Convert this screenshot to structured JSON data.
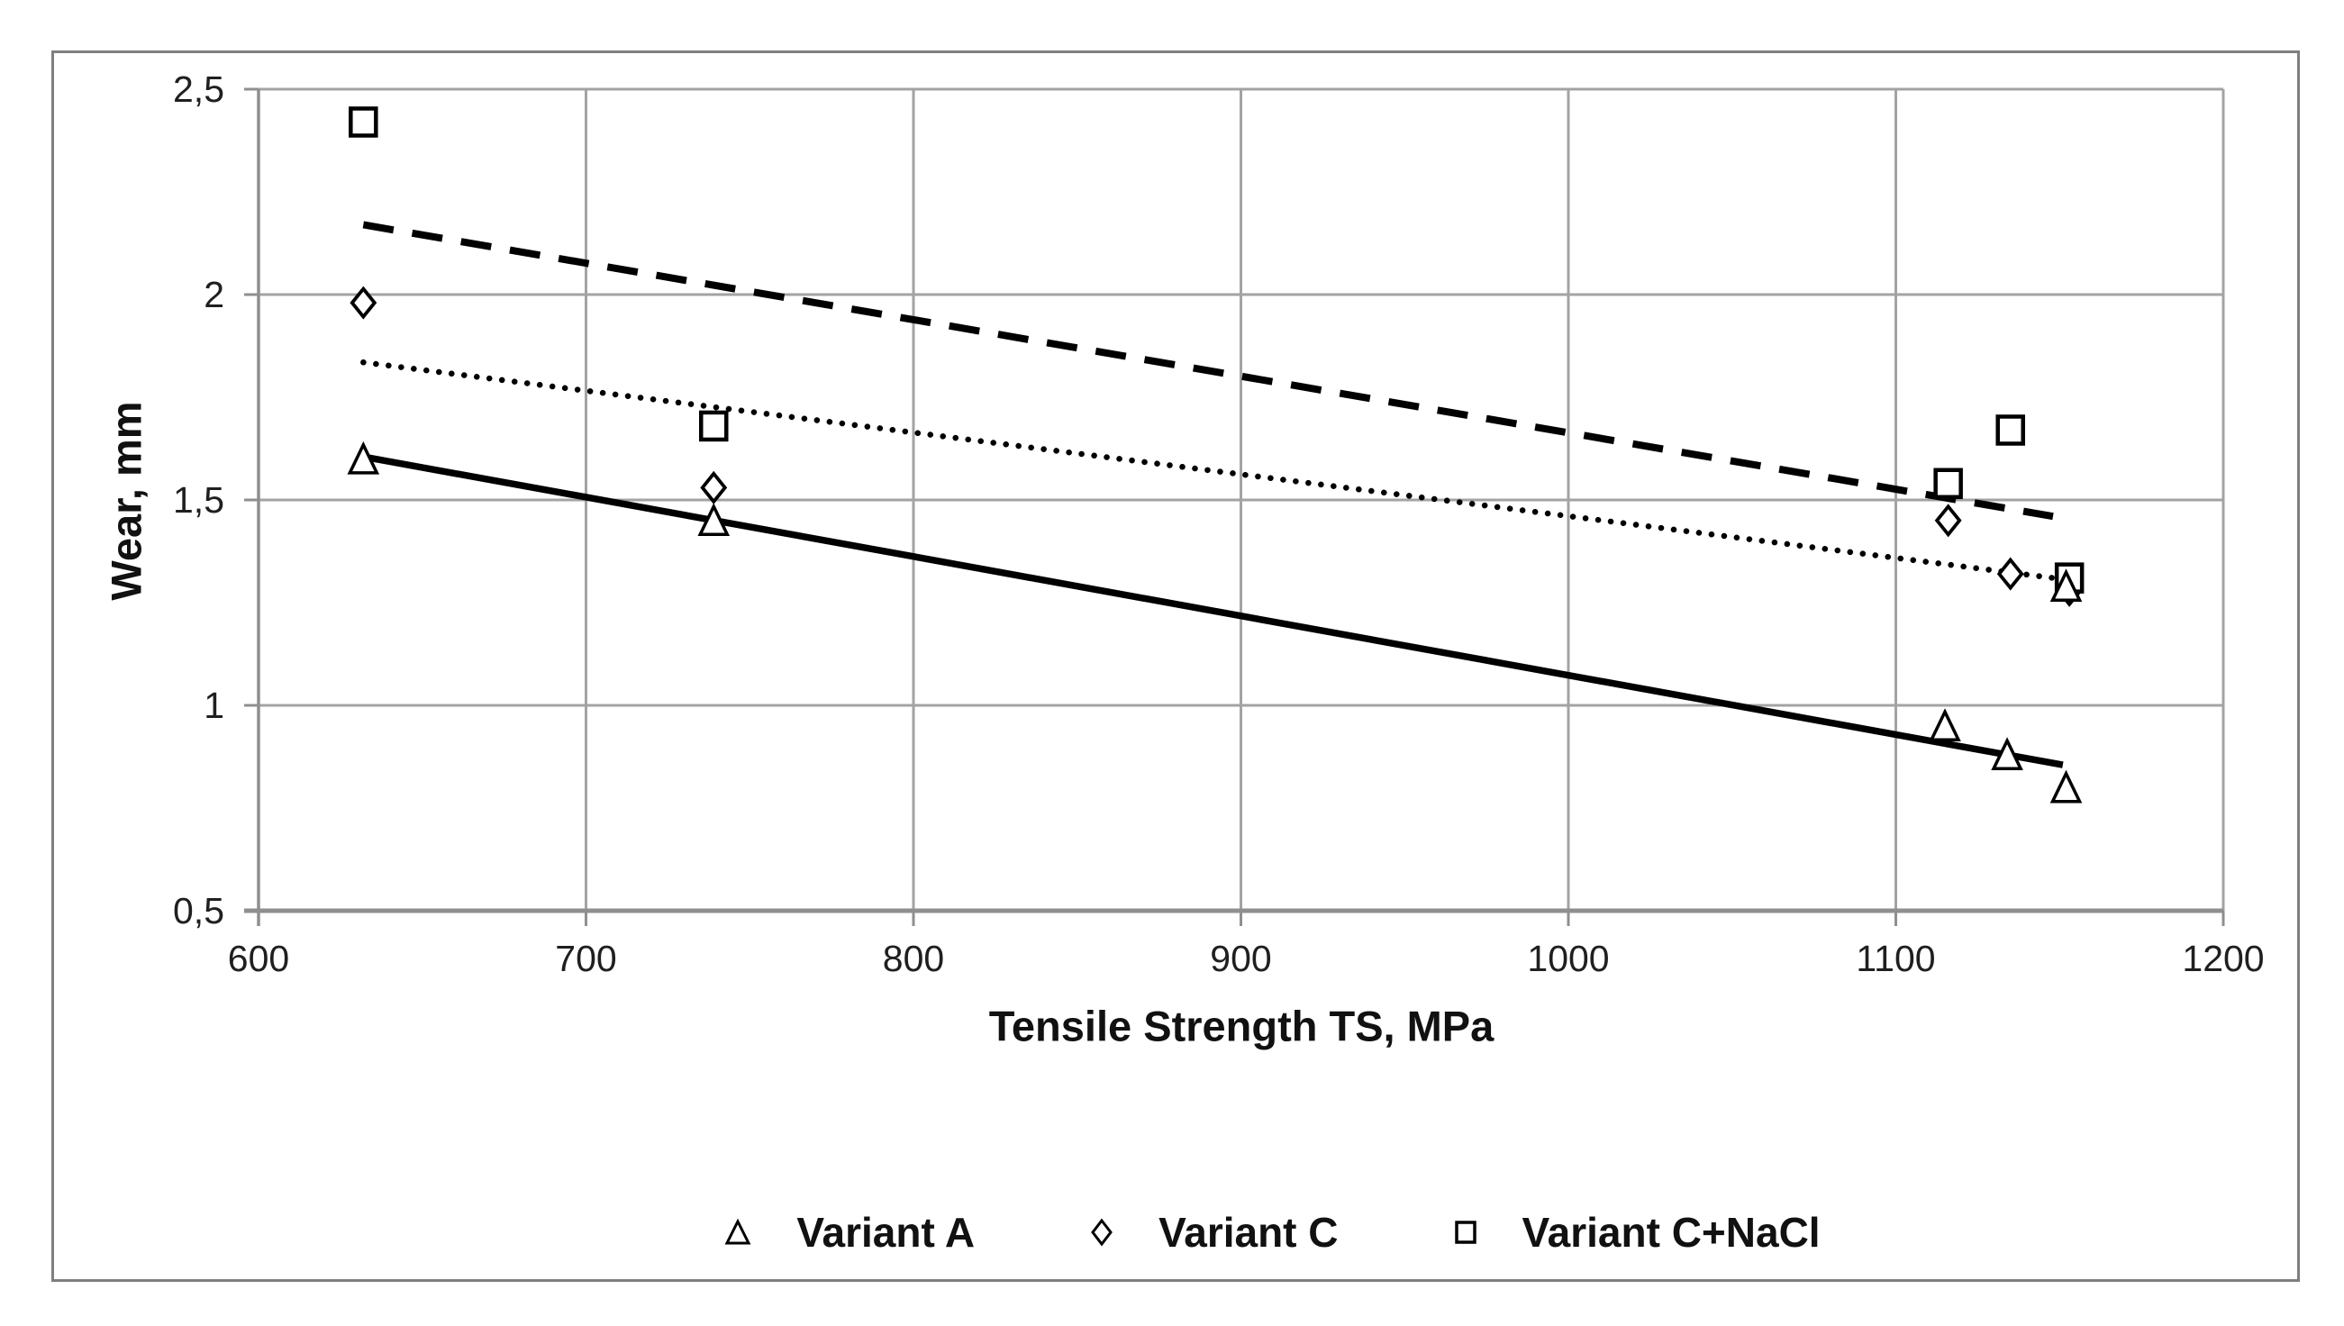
{
  "chart_data": {
    "type": "scatter",
    "title": "",
    "xlabel": "Tensile Strength TS, MPa",
    "ylabel": "Wear, mm",
    "xlim": [
      600,
      1200
    ],
    "ylim": [
      0.5,
      2.5
    ],
    "x_ticks": [
      600,
      700,
      800,
      900,
      1000,
      1100,
      1200
    ],
    "x_tick_labels": [
      "600",
      "700",
      "800",
      "900",
      "1000",
      "1100",
      "1200"
    ],
    "y_ticks": [
      0.5,
      1.0,
      1.5,
      2.0,
      2.5
    ],
    "y_tick_labels": [
      "0,5",
      "1",
      "1,5",
      "2",
      "2,5"
    ],
    "grid": true,
    "legend_position": "bottom",
    "series": [
      {
        "name": "Variant A",
        "marker": "triangle",
        "points": [
          [
            632,
            1.6
          ],
          [
            739,
            1.45
          ],
          [
            1115,
            0.95
          ],
          [
            1134,
            0.88
          ],
          [
            1152,
            0.8
          ],
          [
            1152,
            1.29
          ]
        ],
        "trendline": {
          "style": "solid",
          "from": [
            632,
            1.605
          ],
          "to": [
            1151,
            0.855
          ]
        }
      },
      {
        "name": "Variant C",
        "marker": "diamond",
        "points": [
          [
            632,
            1.98
          ],
          [
            739,
            1.53
          ],
          [
            1116,
            1.45
          ],
          [
            1135,
            1.32
          ],
          [
            1153,
            1.28
          ]
        ],
        "trendline": {
          "style": "dotted",
          "from": [
            632,
            1.835
          ],
          "to": [
            1153,
            1.305
          ]
        }
      },
      {
        "name": "Variant C+NaCl",
        "marker": "square",
        "points": [
          [
            632,
            2.42
          ],
          [
            739,
            1.68
          ],
          [
            1116,
            1.54
          ],
          [
            1135,
            1.67
          ],
          [
            1153,
            1.31
          ]
        ],
        "trendline": {
          "style": "dashed",
          "from": [
            632,
            2.17
          ],
          "to": [
            1148,
            1.46
          ]
        }
      }
    ],
    "colors": {
      "marker": "#000000",
      "trendline": "#000000",
      "gridline": "#a3a3a3",
      "axis": "#8f8f8f",
      "figure_border": "#7f7f7f",
      "text": "#1f1f1f",
      "background": "#ffffff"
    }
  }
}
